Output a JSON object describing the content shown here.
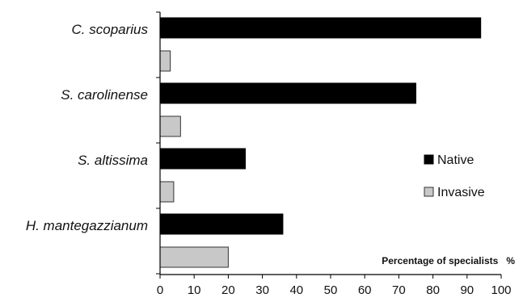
{
  "chart_data": {
    "type": "bar",
    "orientation": "horizontal",
    "categories": [
      "C. scoparius",
      "S. carolinense",
      "S. altissima",
      "H. mantegazzianum"
    ],
    "series": [
      {
        "name": "Native",
        "values": [
          94,
          75,
          25,
          36
        ],
        "color": "#000000"
      },
      {
        "name": "Invasive",
        "values": [
          3,
          6,
          4,
          20
        ],
        "color": "#c8c8c8"
      }
    ],
    "xlabel": "Percentage of specialists   %",
    "xlim": [
      0,
      100
    ],
    "xticks": [
      0,
      10,
      20,
      30,
      40,
      50,
      60,
      70,
      80,
      90,
      100
    ],
    "grid": false,
    "legend_position": "right"
  }
}
